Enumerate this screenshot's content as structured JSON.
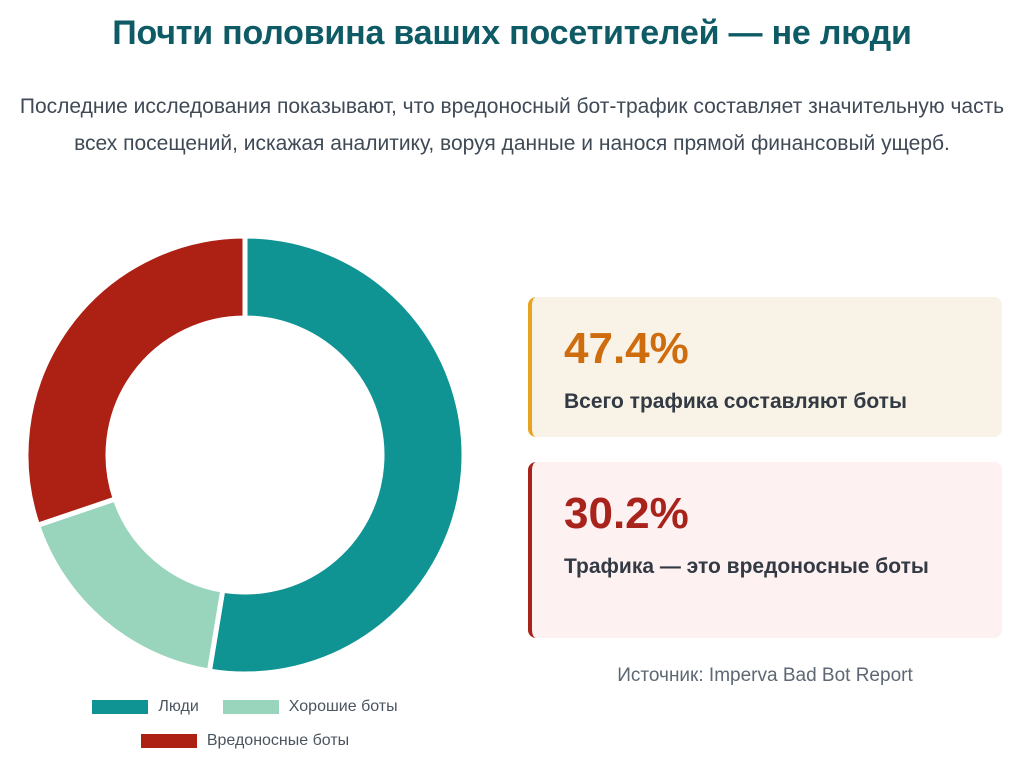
{
  "title": "Почти половина ваших посетителей — не люди",
  "subtitle": "Последние исследования показывают, что вредоносный бот-трафик составляет значительную часть всех посещений, искажая аналитику, воруя данные и нанося прямой финансовый ущерб.",
  "chart_data": {
    "type": "pie",
    "donut": true,
    "categories": [
      "Люди",
      "Хорошие боты",
      "Вредоносные боты"
    ],
    "values": [
      52.6,
      17.2,
      30.2
    ],
    "colors": [
      "#0f9393",
      "#99d4bd",
      "#ad2014"
    ],
    "legend_position": "bottom"
  },
  "stats": [
    {
      "value": "47.4%",
      "label": "Всего трафика составляют боты"
    },
    {
      "value": "30.2%",
      "label": "Трафика — это вредоносные боты"
    }
  ],
  "source": "Источник: Imperva Bad Bot Report"
}
